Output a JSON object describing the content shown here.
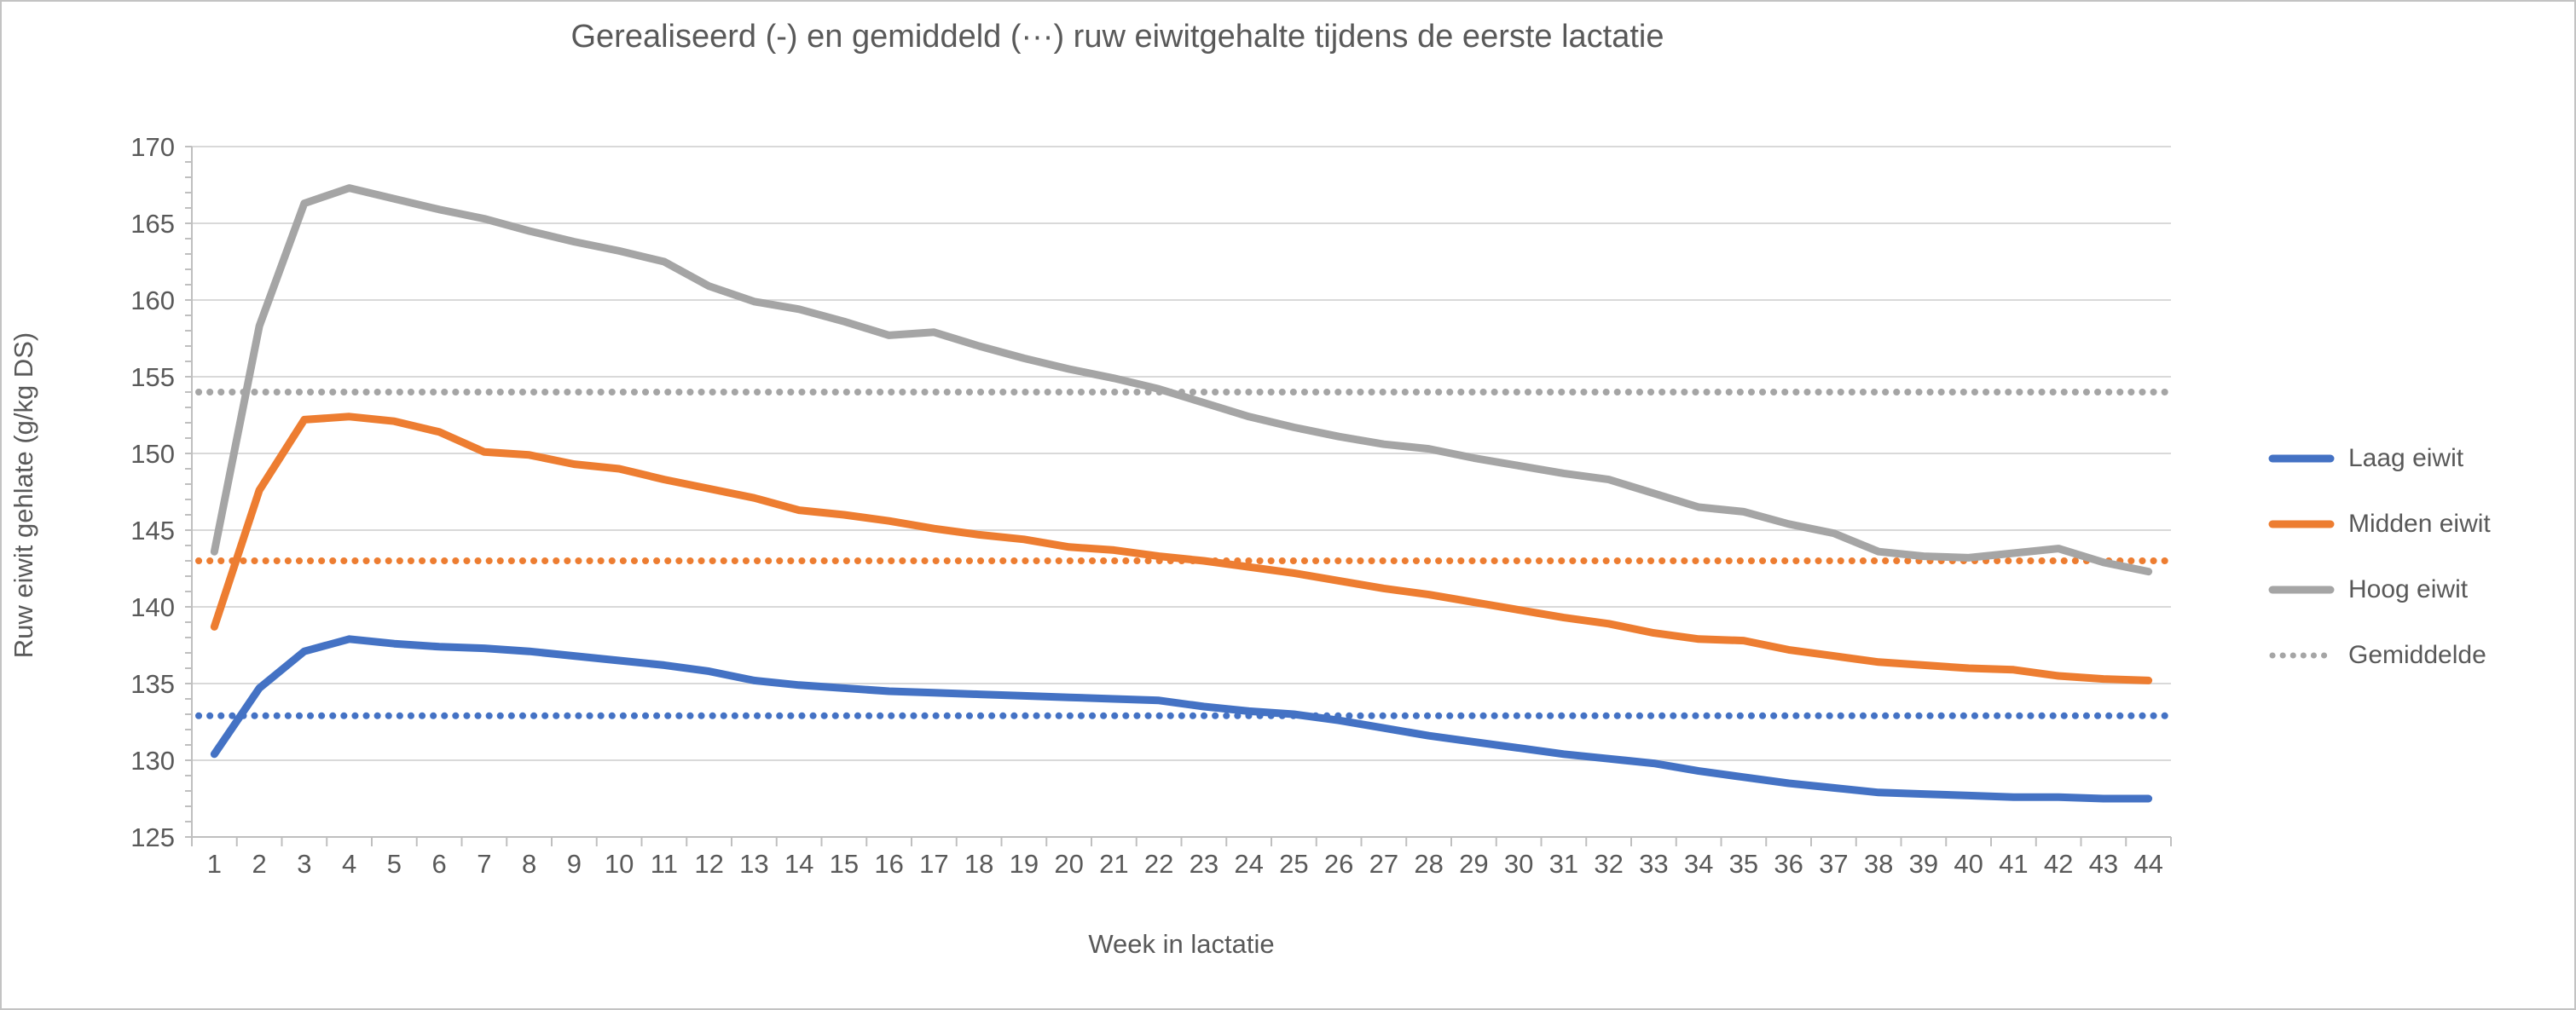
{
  "title": "Gerealiseerd (-) en gemiddeld (···) ruw eiwitgehalte tijdens de eerste lactatie",
  "chart_data": {
    "type": "line",
    "title": "Gerealiseerd (-) en gemiddeld (···) ruw eiwitgehalte tijdens de eerste lactatie",
    "xlabel": "Week in lactatie",
    "ylabel": "Ruw eiwit gehlate (g/kg DS)",
    "ylim": [
      125,
      170
    ],
    "ytick_step": 5,
    "yticks": [
      125,
      130,
      135,
      140,
      145,
      150,
      155,
      160,
      165,
      170
    ],
    "grid": true,
    "legend_position": "right",
    "categories": [
      1,
      2,
      3,
      4,
      5,
      6,
      7,
      8,
      9,
      10,
      11,
      12,
      13,
      14,
      15,
      16,
      17,
      18,
      19,
      20,
      21,
      22,
      23,
      24,
      25,
      26,
      27,
      28,
      29,
      30,
      31,
      32,
      33,
      34,
      35,
      36,
      37,
      38,
      39,
      40,
      41,
      42,
      43,
      44
    ],
    "series": [
      {
        "name": "Laag eiwit",
        "color": "#4472C4",
        "style": "solid",
        "values": [
          130.4,
          134.7,
          137.1,
          137.9,
          137.6,
          137.4,
          137.3,
          137.1,
          136.8,
          136.5,
          136.2,
          135.8,
          135.2,
          134.9,
          134.7,
          134.5,
          134.4,
          134.3,
          134.2,
          134.1,
          134.0,
          133.9,
          133.5,
          133.2,
          133.0,
          132.6,
          132.1,
          131.6,
          131.2,
          130.8,
          130.4,
          130.1,
          129.8,
          129.3,
          128.9,
          128.5,
          128.2,
          127.9,
          127.8,
          127.7,
          127.6,
          127.6,
          127.5,
          127.5
        ]
      },
      {
        "name": "Midden eiwit",
        "color": "#ED7D31",
        "style": "solid",
        "values": [
          138.7,
          147.6,
          152.2,
          152.4,
          152.1,
          151.4,
          150.1,
          149.9,
          149.3,
          149.0,
          148.3,
          147.7,
          147.1,
          146.3,
          146.0,
          145.6,
          145.1,
          144.7,
          144.4,
          143.9,
          143.7,
          143.3,
          143.0,
          142.6,
          142.2,
          141.7,
          141.2,
          140.8,
          140.3,
          139.8,
          139.3,
          138.9,
          138.3,
          137.9,
          137.8,
          137.2,
          136.8,
          136.4,
          136.2,
          136.0,
          135.9,
          135.5,
          135.3,
          135.2
        ]
      },
      {
        "name": "Hoog eiwit",
        "color": "#A5A5A5",
        "style": "solid",
        "values": [
          143.6,
          158.3,
          166.3,
          167.3,
          166.6,
          165.9,
          165.3,
          164.5,
          163.8,
          163.2,
          162.5,
          160.9,
          159.9,
          159.4,
          158.6,
          157.7,
          157.9,
          157.0,
          156.2,
          155.5,
          154.9,
          154.2,
          153.3,
          152.4,
          151.7,
          151.1,
          150.6,
          150.3,
          149.7,
          149.2,
          148.7,
          148.3,
          147.4,
          146.5,
          146.2,
          145.4,
          144.8,
          143.6,
          143.3,
          143.2,
          143.5,
          143.8,
          142.9,
          142.3
        ]
      }
    ],
    "mean_lines": [
      {
        "series": "Hoog eiwit",
        "value": 154.0,
        "color": "#A5A5A5",
        "style": "dotted"
      },
      {
        "series": "Midden eiwit",
        "value": 143.0,
        "color": "#ED7D31",
        "style": "dotted"
      },
      {
        "series": "Laag eiwit",
        "value": 132.9,
        "color": "#4472C4",
        "style": "dotted"
      }
    ],
    "legend": [
      {
        "label": "Laag eiwit",
        "color": "#4472C4",
        "style": "solid"
      },
      {
        "label": "Midden eiwit",
        "color": "#ED7D31",
        "style": "solid"
      },
      {
        "label": "Hoog eiwit",
        "color": "#A5A5A5",
        "style": "solid"
      },
      {
        "label": "Gemiddelde",
        "color": "#A5A5A5",
        "style": "dotted"
      }
    ]
  },
  "style_colors": {
    "gridline": "#D9D9D9",
    "axis_line": "#BFBFBF",
    "text": "#595959"
  }
}
